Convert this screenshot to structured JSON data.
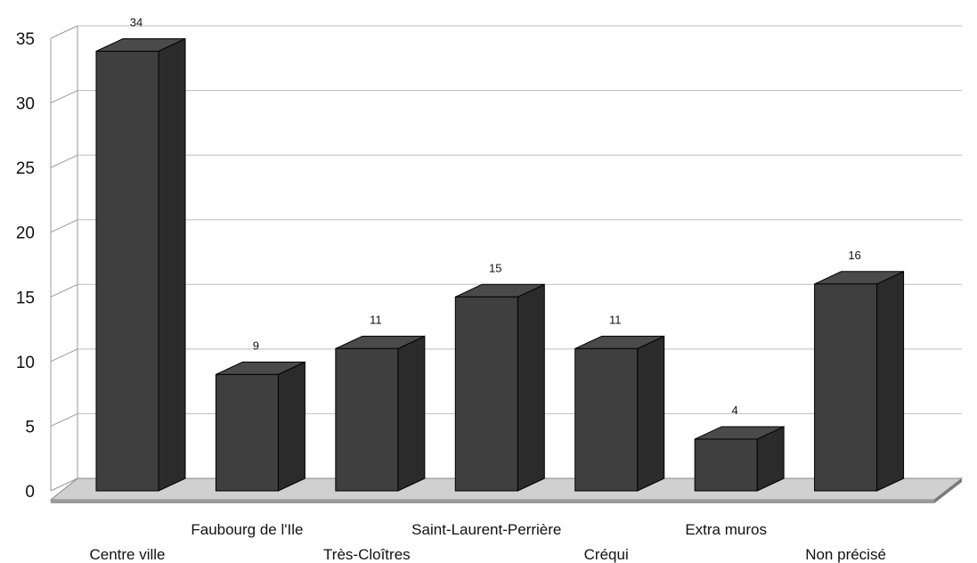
{
  "chart_data": {
    "type": "bar",
    "title": "",
    "xlabel": "",
    "ylabel": "",
    "categories": [
      "Centre ville",
      "Faubourg de l'Ile",
      "Très-Cloîtres",
      "Saint-Laurent-Perrière",
      "Créqui",
      "Extra muros",
      "Non précisé"
    ],
    "values": [
      34,
      9,
      11,
      15,
      11,
      4,
      16
    ],
    "data_labels": [
      "34",
      "9",
      "11",
      "15",
      "11",
      "4",
      "16"
    ],
    "yticks": [
      "0",
      "5",
      "10",
      "15",
      "20",
      "25",
      "30",
      "35"
    ],
    "ylim": [
      0,
      35
    ],
    "grid": true,
    "legend": "none",
    "style": "3d-column",
    "colors": {
      "bar_front": "#3f3f3f",
      "bar_top": "#4a4a4a",
      "bar_side": "#2b2b2b",
      "floor": "#d0d0d0",
      "grid": "#bdbdbd"
    }
  }
}
